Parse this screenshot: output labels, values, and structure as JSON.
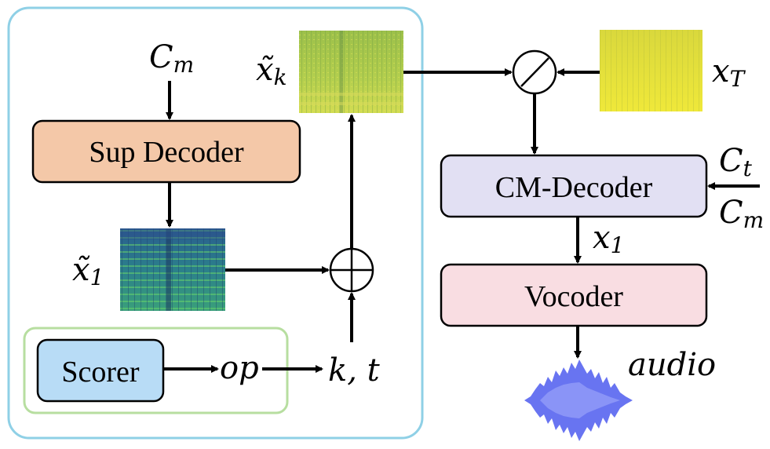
{
  "nodes": {
    "sup_decoder": "Sup Decoder",
    "cm_decoder": "CM-Decoder",
    "vocoder": "Vocoder",
    "scorer": "Scorer"
  },
  "symbols": {
    "cm_top": {
      "base": "C",
      "sub": "m"
    },
    "xk": {
      "base": "x̃",
      "sub": "k"
    },
    "x1_tilde": {
      "base": "x̃",
      "sub": "1"
    },
    "xT": {
      "base": "x",
      "sub": "T"
    },
    "ct": {
      "base": "C",
      "sub": "t"
    },
    "cm_right": {
      "base": "C",
      "sub": "m"
    },
    "x1": {
      "base": "x",
      "sub": "1"
    },
    "op": "op",
    "kt": "k, t",
    "audio": "audio"
  },
  "colors": {
    "outer_frame": "#8fd0e6",
    "scorer_frame": "#b7dea0",
    "sup_decoder_fill": "#f4c8a8",
    "cm_decoder_fill": "#e2e0f3",
    "vocoder_fill": "#f9dde2",
    "scorer_fill": "#b8dcf6",
    "spectrogram_xk": "#a8c84e",
    "spectrogram_xT": "#e6e13c",
    "spectrogram_x1": "#2e7a8c",
    "waveform": "#5865f0"
  },
  "icons": {
    "divide_op": "circle-slash-icon",
    "add_op": "circle-plus-icon",
    "waveform": "audio-waveform-icon"
  }
}
